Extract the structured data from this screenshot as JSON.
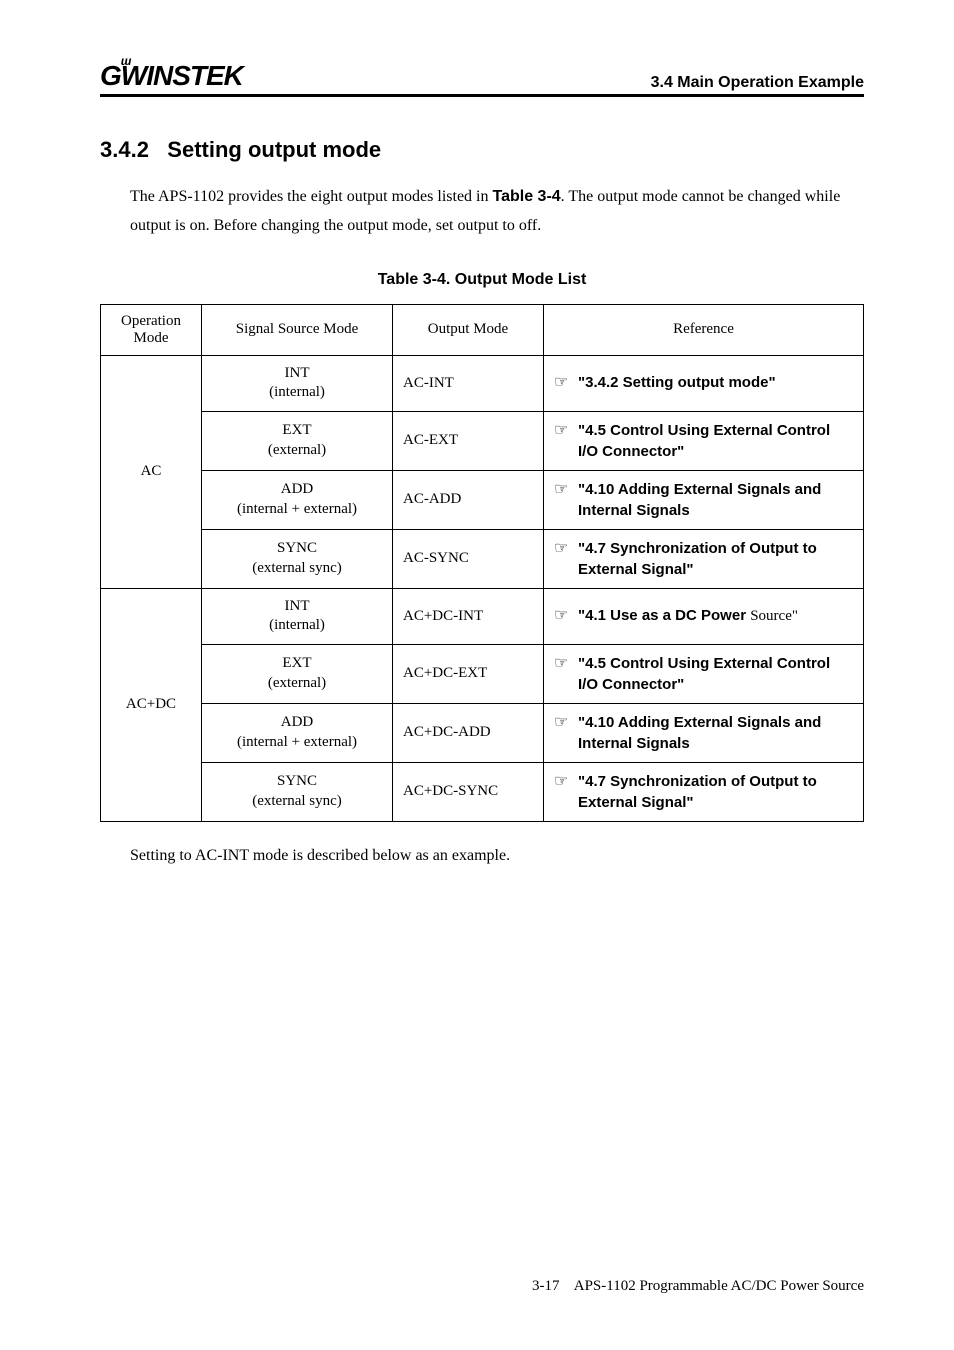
{
  "header": {
    "logo_text": "GᵂINSTEK",
    "section_ref": "3.4 Main Operation Example"
  },
  "heading": {
    "number": "3.4.2",
    "title": "Setting output mode"
  },
  "intro": {
    "line1_a": "The APS-1102 provides the eight output modes listed in ",
    "line1_bold": "Table 3-4",
    "line1_b": ".  The output mode cannot be changed while output is on.  Before changing the output mode, set output to off."
  },
  "table_caption": "Table 3-4.  Output Mode List",
  "table": {
    "headers": {
      "op": "Operation Mode",
      "src": "Signal Source Mode",
      "mode": "Output Mode",
      "ref": "Reference"
    },
    "groups": [
      {
        "op": "AC",
        "rows": [
          {
            "src_main": "INT",
            "src_sub": "(internal)",
            "mode": "AC-INT",
            "ref_bold": "\"3.4.2  Setting output mode\"",
            "ref_tail": ""
          },
          {
            "src_main": "EXT",
            "src_sub": "(external)",
            "mode": "AC-EXT",
            "ref_bold": "\"4.5  Control Using External Control I/O Connector\"",
            "ref_tail": ""
          },
          {
            "src_main": "ADD",
            "src_sub": "(internal + external)",
            "mode": "AC-ADD",
            "ref_bold": "\"4.10  Adding External Signals and Internal Signals",
            "ref_tail": ""
          },
          {
            "src_main": "SYNC",
            "src_sub": "(external sync)",
            "mode": "AC-SYNC",
            "ref_bold": "\"4.7 Synchronization of Output to External Signal\"",
            "ref_tail": ""
          }
        ]
      },
      {
        "op": "AC+DC",
        "rows": [
          {
            "src_main": "INT",
            "src_sub": "(internal)",
            "mode": "AC+DC-INT",
            "ref_bold": "\"4.1  Use as a DC Power ",
            "ref_tail": "Source\""
          },
          {
            "src_main": "EXT",
            "src_sub": "(external)",
            "mode": "AC+DC-EXT",
            "ref_bold": "\"4.5  Control Using External Control I/O Connector\"",
            "ref_tail": ""
          },
          {
            "src_main": "ADD",
            "src_sub": "(internal + external)",
            "mode": "AC+DC-ADD",
            "ref_bold": "\"4.10  Adding External Signals and Internal Signals",
            "ref_tail": ""
          },
          {
            "src_main": "SYNC",
            "src_sub": "(external sync)",
            "mode": "AC+DC-SYNC",
            "ref_bold": "\"4.7  Synchronization of Output to External Signal\"",
            "ref_tail": ""
          }
        ]
      }
    ]
  },
  "after_text": "Setting to AC-INT mode is described below as an example.",
  "footer": {
    "page": "3-17",
    "doc": "APS-1102 Programmable AC/DC Power Source"
  },
  "pointer_glyph": "☞"
}
